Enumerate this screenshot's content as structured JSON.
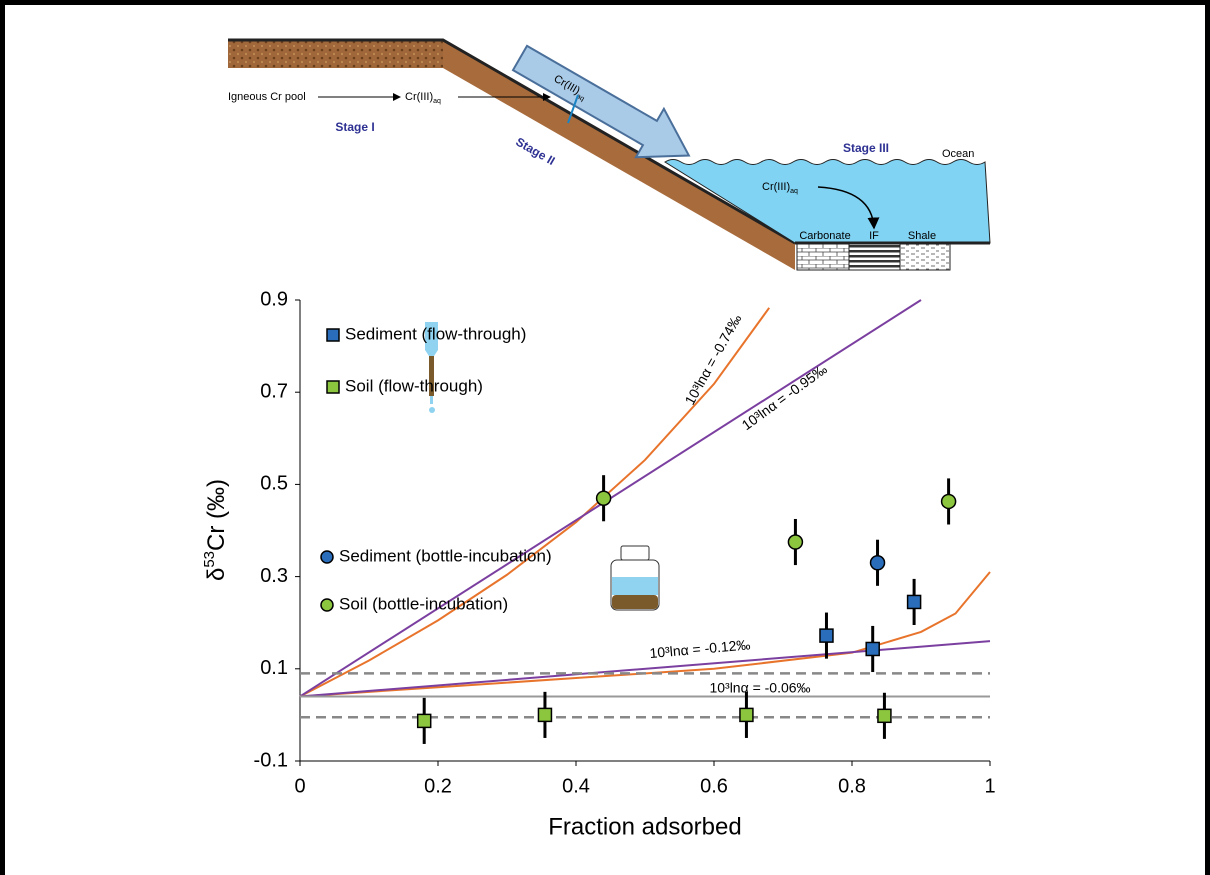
{
  "diagram": {
    "source": "Igneous Cr pool",
    "species_land": {
      "main": "Cr(III)",
      "sub": "aq"
    },
    "species_river": {
      "main": "Cr(III)",
      "sub": "aq"
    },
    "species_ocean": {
      "main": "Cr(III)",
      "sub": "aq"
    },
    "stage_1": "Stage I",
    "stage_2": "Stage II",
    "stage_3": "Stage III",
    "ocean": "Ocean",
    "sediments": [
      "Carbonate",
      "IF",
      "Shale"
    ]
  },
  "chart_data": {
    "type": "scatter",
    "xlabel": "Fraction adsorbed",
    "ylabel": {
      "prefix": "δ",
      "superscript": "53",
      "suffix": "Cr (‰)"
    },
    "xlim": [
      0,
      1
    ],
    "xticks": [
      0,
      0.2,
      0.4,
      0.6,
      0.8,
      1
    ],
    "ylim": [
      -0.1,
      0.9
    ],
    "yticks": [
      -0.1,
      0.1,
      0.3,
      0.5,
      0.7,
      0.9
    ],
    "grid": false,
    "series": [
      {
        "name": "Sediment (flow-through)",
        "color": "#2a6ebb",
        "marker": "square",
        "x": [
          0.763,
          0.83,
          0.89
        ],
        "values": [
          0.172,
          0.143,
          0.245
        ],
        "errors": [
          0.05,
          0.05,
          0.05
        ]
      },
      {
        "name": "Soil (flow-through)",
        "color": "#8cc63f",
        "marker": "square",
        "x": [
          0.18,
          0.355,
          0.647,
          0.847
        ],
        "values": [
          -0.013,
          0.0,
          0.0,
          -0.002
        ],
        "errors": [
          0.05,
          0.05,
          0.05,
          0.05
        ]
      },
      {
        "name": "Sediment (bottle-incubation)",
        "color": "#2a6ebb",
        "marker": "circle",
        "x": [
          0.837
        ],
        "values": [
          0.33
        ],
        "errors": [
          0.05
        ]
      },
      {
        "name": "Soil (bottle-incubation)",
        "color": "#8cc63f",
        "marker": "circle",
        "x": [
          0.44,
          0.718,
          0.94
        ],
        "values": [
          0.47,
          0.375,
          0.463
        ],
        "errors": [
          0.05,
          0.05,
          0.05
        ]
      }
    ],
    "lines": [
      {
        "color": "#e8742c",
        "dash": false,
        "x": [
          0,
          0.1,
          0.2,
          0.3,
          0.4,
          0.5,
          0.6,
          0.68
        ],
        "values": [
          0.04,
          0.118,
          0.205,
          0.304,
          0.418,
          0.553,
          0.718,
          0.883
        ]
      },
      {
        "color": "#7b3fa0",
        "dash": false,
        "x": [
          0,
          0.9
        ],
        "values": [
          0.04,
          0.9
        ]
      },
      {
        "color": "#e8742c",
        "dash": false,
        "x": [
          0,
          0.2,
          0.4,
          0.6,
          0.8,
          0.9,
          0.95,
          1
        ],
        "values": [
          0.04,
          0.06,
          0.08,
          0.1,
          0.135,
          0.18,
          0.22,
          0.31
        ]
      },
      {
        "color": "#7b3fa0",
        "dash": false,
        "x": [
          0,
          1
        ],
        "values": [
          0.04,
          0.16
        ]
      },
      {
        "color": "#999999",
        "dash": false,
        "x": [
          0,
          1
        ],
        "values": [
          0.04,
          0.04
        ]
      },
      {
        "color": "#888888",
        "dash": true,
        "x": [
          0,
          1
        ],
        "values": [
          0.09,
          0.09
        ]
      },
      {
        "color": "#888888",
        "dash": true,
        "x": [
          0,
          1
        ],
        "values": [
          -0.005,
          -0.005
        ]
      }
    ],
    "annotations": [
      "10³lnα = -0.74‰",
      "10³lnα = -0.95‰",
      "10³lnα = -0.12‰",
      "10³lnα = -0.06‰"
    ]
  }
}
